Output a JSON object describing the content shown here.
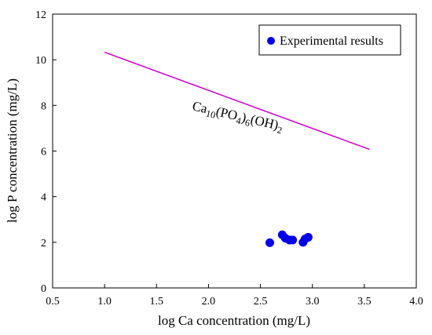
{
  "chart_data": {
    "type": "scatter",
    "xlabel": "log Ca concentration  (mg/L)",
    "ylabel": "log P concentration  (mg/L)",
    "xlim": [
      0.5,
      4.0
    ],
    "ylim": [
      0,
      12
    ],
    "xticks": [
      "0.5",
      "1.0",
      "1.5",
      "2.0",
      "2.5",
      "3.0",
      "3.5",
      "4.0"
    ],
    "yticks": [
      "0",
      "2",
      "4",
      "6",
      "8",
      "10",
      "12"
    ],
    "grid": false,
    "legend_position": "top-right",
    "series": [
      {
        "name": "Experimental results",
        "type": "scatter",
        "color": "#0000ee",
        "points": [
          {
            "x": 2.59,
            "y": 1.98
          },
          {
            "x": 2.71,
            "y": 2.33
          },
          {
            "x": 2.74,
            "y": 2.18
          },
          {
            "x": 2.78,
            "y": 2.1
          },
          {
            "x": 2.81,
            "y": 2.1
          },
          {
            "x": 2.91,
            "y": 2.0
          },
          {
            "x": 2.93,
            "y": 2.15
          },
          {
            "x": 2.96,
            "y": 2.22
          }
        ]
      },
      {
        "type": "line",
        "color": "#cc00cc",
        "points": [
          {
            "x": 1.0,
            "y": 10.33
          },
          {
            "x": 3.55,
            "y": 6.07
          }
        ]
      }
    ],
    "annotations": [
      {
        "label": "Ca10(PO4)6(OH)2",
        "parts": [
          {
            "text": "Ca",
            "sub": false
          },
          {
            "text": "10",
            "sub": true
          },
          {
            "text": "(PO",
            "sub": false
          },
          {
            "text": "4",
            "sub": true
          },
          {
            "text": ")",
            "sub": false
          },
          {
            "text": "6",
            "sub": true
          },
          {
            "text": "(OH)",
            "sub": false
          },
          {
            "text": "2",
            "sub": true
          }
        ]
      }
    ]
  }
}
